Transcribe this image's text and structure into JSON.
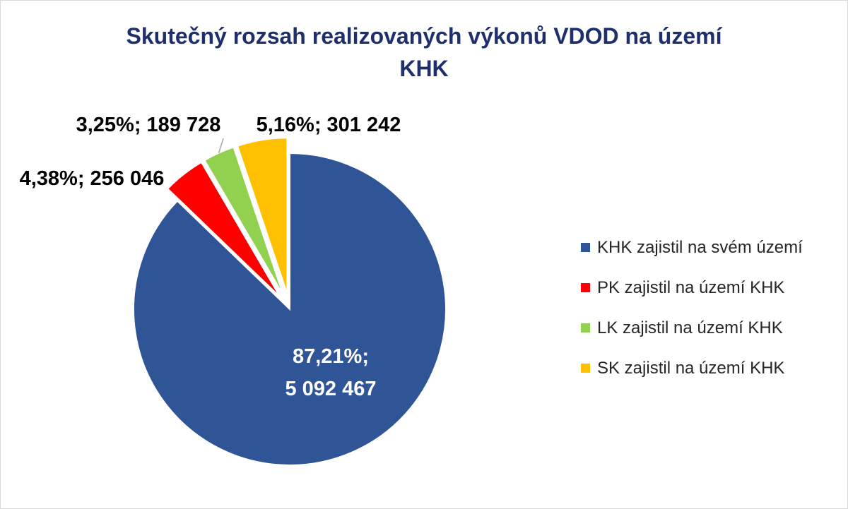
{
  "title": {
    "line1": "Skutečný rozsah realizovaných výkonů VDOD na území",
    "line2": "KHK"
  },
  "chart_data": {
    "type": "pie",
    "title": "Skutečný rozsah realizovaných výkonů VDOD na území KHK",
    "legend_position": "right",
    "slices": [
      {
        "name": "KHK zajistil na svém území",
        "value": 5092467,
        "percent": 87.21,
        "label": "87,21%; 5 092 467",
        "label_line1": "87,21%;",
        "label_line2": "5 092 467",
        "color": "#2f5597"
      },
      {
        "name": "PK zajistil na území KHK",
        "value": 256046,
        "percent": 4.38,
        "label": "4,38%; 256 046",
        "color": "#ff0000"
      },
      {
        "name": "LK zajistil na území KHK",
        "value": 189728,
        "percent": 3.25,
        "label": "3,25%; 189 728",
        "color": "#92d050"
      },
      {
        "name": "SK zajistil na území KHK",
        "value": 301242,
        "percent": 5.16,
        "label": "5,16%; 301 242",
        "color": "#ffc000"
      }
    ]
  }
}
